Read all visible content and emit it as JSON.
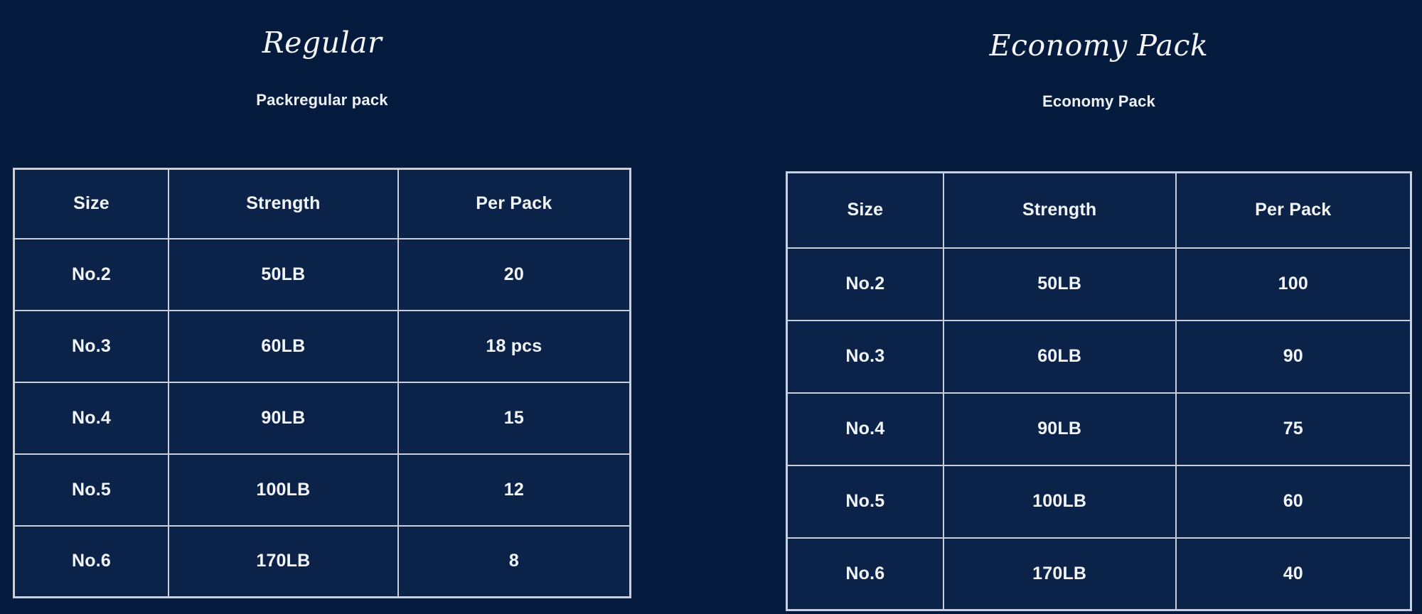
{
  "theme": {
    "background": "#041b3e",
    "cell_background": "#0b2349",
    "border_color": "#c9ced8",
    "title_color": "#f4f6fa",
    "subtitle_color": "#eef2f8",
    "cell_text_color": "#f2f5fa"
  },
  "chart_data": [
    {
      "type": "table",
      "title": "Regular",
      "subtitle": "Packregular pack",
      "columns": [
        "Size",
        "Strength",
        "Per Pack"
      ],
      "rows": [
        [
          "No.2",
          "50LB",
          "20"
        ],
        [
          "No.3",
          "60LB",
          "18 pcs"
        ],
        [
          "No.4",
          "90LB",
          "15"
        ],
        [
          "No.5",
          "100LB",
          "12"
        ],
        [
          "No.6",
          "170LB",
          "8"
        ]
      ]
    },
    {
      "type": "table",
      "title": "Economy Pack",
      "subtitle": "Economy Pack",
      "columns": [
        "Size",
        "Strength",
        "Per Pack"
      ],
      "rows": [
        [
          "No.2",
          "50LB",
          "100"
        ],
        [
          "No.3",
          "60LB",
          "90"
        ],
        [
          "No.4",
          "90LB",
          "75"
        ],
        [
          "No.5",
          "100LB",
          "60"
        ],
        [
          "No.6",
          "170LB",
          "40"
        ]
      ]
    }
  ]
}
